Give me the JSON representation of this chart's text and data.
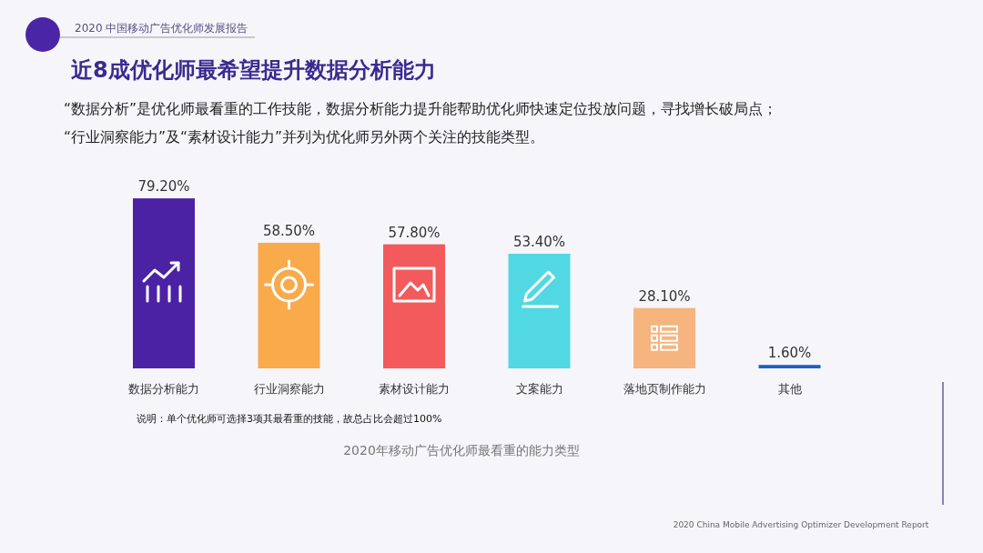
{
  "chart_data": {
    "type": "bar",
    "title": "近8成优化师最希望提升数据分析能力",
    "subtitle": "“数据分析”是优化师最看重的工作技能，数据分析能力提升能帮助优化师快速定位投放问题，寻找增长破局点；\n“行业洞察能力”及“素材设计能力”并列为优化师另外两个关注的技能类型。",
    "categories": [
      "数据分析能力",
      "行业洞察能力",
      "素材设计能力",
      "文案能力",
      "落地页制作能力",
      "其他"
    ],
    "values": [
      79.2,
      58.5,
      57.8,
      53.4,
      28.1,
      1.6
    ],
    "value_labels": [
      "79.20%",
      "58.50%",
      "57.80%",
      "53.40%",
      "28.10%",
      "1.60%"
    ],
    "colors": [
      "#4b22a3",
      "#f9aa4b",
      "#f25a5c",
      "#52d8e2",
      "#f6b47f",
      "#1f5fc4"
    ],
    "annotations": [
      "2020 中国移动广告优化师发展报告",
      "说明：单个优化师可选择3项其最看重的技能，故总占比会超过100%",
      "2020年移动广告优化师最看重的能力类型",
      "2020 China Mobile Advertising Optimizer Development Report"
    ]
  }
}
